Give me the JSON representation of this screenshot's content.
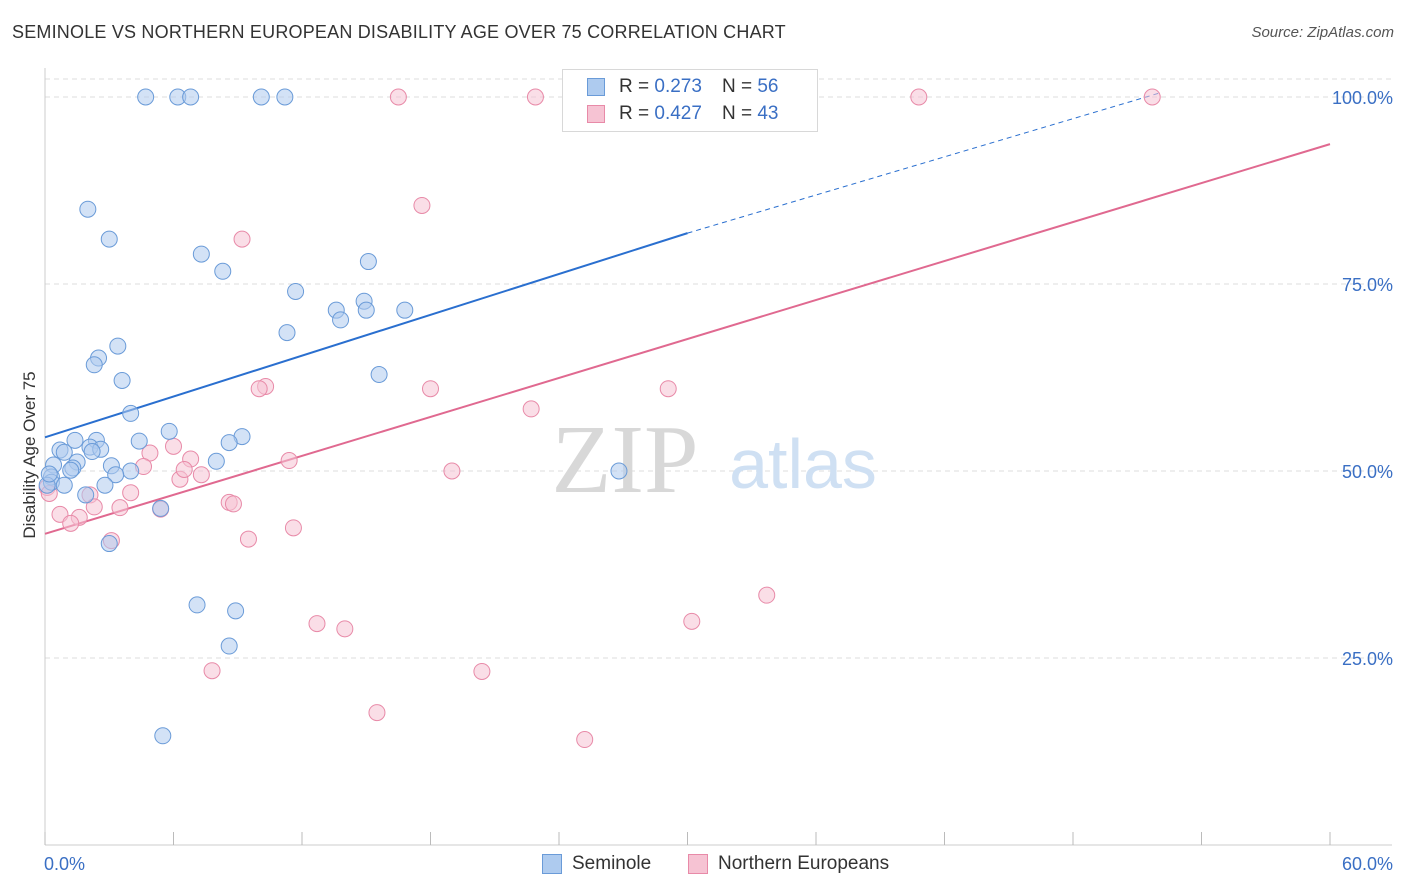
{
  "title": "SEMINOLE VS NORTHERN EUROPEAN DISABILITY AGE OVER 75 CORRELATION CHART",
  "source": "Source: ZipAtlas.com",
  "watermark": {
    "zip": "ZIP",
    "atlas": "atlas"
  },
  "legend_top": [
    {
      "r_label": "R = ",
      "r_value": "0.273",
      "n_label": "N = ",
      "n_value": "56"
    },
    {
      "r_label": "R = ",
      "r_value": "0.427",
      "n_label": "N = ",
      "n_value": "43"
    }
  ],
  "colors": {
    "blue_fill": "#aecbef",
    "blue_stroke": "#6a9bd8",
    "blue_line": "#2a6fcf",
    "pink_fill": "#f6c3d3",
    "pink_stroke": "#e88aa8",
    "pink_line": "#e06990",
    "axis_text": "#3a6fc4",
    "grid": "#dddddd"
  },
  "chart_data": {
    "type": "scatter",
    "title": "SEMINOLE VS NORTHERN EUROPEAN DISABILITY AGE OVER 75 CORRELATION CHART",
    "xlabel": "",
    "ylabel": "Disability Age Over 75",
    "xlim": [
      0,
      60
    ],
    "ylim": [
      0,
      104
    ],
    "x_tick_labels": [
      "0.0%",
      "60.0%"
    ],
    "y_ticks": [
      25,
      50,
      75,
      100
    ],
    "y_tick_labels": [
      "25.0%",
      "50.0%",
      "75.0%",
      "100.0%"
    ],
    "grid": true,
    "legend_placement": "bottom-center",
    "series": [
      {
        "name": "Seminole",
        "r": 0.273,
        "n": 56,
        "trend": {
          "x0": 0,
          "y0": 54.5,
          "x1": 30,
          "y1": 81.8,
          "dashed_to_x": 52,
          "dashed_to_y": 100.5
        },
        "points": [
          [
            4.7,
            100
          ],
          [
            6.2,
            100
          ],
          [
            6.8,
            100
          ],
          [
            10.1,
            100
          ],
          [
            11.2,
            100
          ],
          [
            2.0,
            85.0
          ],
          [
            3.0,
            81.0
          ],
          [
            7.3,
            79.0
          ],
          [
            8.3,
            76.7
          ],
          [
            15.1,
            78.0
          ],
          [
            11.7,
            74.0
          ],
          [
            14.9,
            72.7
          ],
          [
            13.6,
            71.5
          ],
          [
            16.8,
            71.5
          ],
          [
            15.0,
            71.5
          ],
          [
            13.8,
            70.2
          ],
          [
            11.3,
            68.5
          ],
          [
            3.4,
            66.7
          ],
          [
            2.5,
            65.1
          ],
          [
            2.3,
            64.2
          ],
          [
            15.6,
            62.9
          ],
          [
            3.6,
            62.1
          ],
          [
            4.0,
            57.7
          ],
          [
            5.8,
            55.3
          ],
          [
            9.2,
            54.6
          ],
          [
            8.6,
            53.8
          ],
          [
            1.4,
            54.1
          ],
          [
            2.4,
            54.1
          ],
          [
            4.4,
            54.0
          ],
          [
            2.1,
            53.2
          ],
          [
            0.7,
            52.8
          ],
          [
            2.6,
            52.9
          ],
          [
            0.9,
            52.5
          ],
          [
            8.0,
            51.3
          ],
          [
            1.5,
            51.2
          ],
          [
            3.1,
            50.7
          ],
          [
            0.4,
            50.8
          ],
          [
            1.3,
            50.4
          ],
          [
            1.2,
            50.1
          ],
          [
            4.0,
            50.0
          ],
          [
            3.3,
            49.5
          ],
          [
            0.3,
            49.2
          ],
          [
            0.3,
            48.5
          ],
          [
            0.9,
            48.1
          ],
          [
            2.8,
            48.1
          ],
          [
            0.1,
            48.1
          ],
          [
            1.9,
            46.8
          ],
          [
            26.8,
            50.0
          ],
          [
            5.4,
            45.0
          ],
          [
            3.0,
            40.3
          ],
          [
            7.1,
            32.1
          ],
          [
            8.9,
            31.3
          ],
          [
            8.6,
            26.6
          ],
          [
            5.5,
            14.6
          ],
          [
            0.2,
            49.6
          ],
          [
            2.2,
            52.6
          ]
        ]
      },
      {
        "name": "Northern Europeans",
        "r": 0.427,
        "n": 43,
        "trend": {
          "x0": 0,
          "y0": 41.6,
          "x1": 60,
          "y1": 93.7
        },
        "points": [
          [
            16.5,
            100
          ],
          [
            22.9,
            100
          ],
          [
            40.8,
            100
          ],
          [
            51.7,
            100
          ],
          [
            17.6,
            85.5
          ],
          [
            9.2,
            81.0
          ],
          [
            10.3,
            61.3
          ],
          [
            10.0,
            61.0
          ],
          [
            18.0,
            61.0
          ],
          [
            29.1,
            61.0
          ],
          [
            22.7,
            58.3
          ],
          [
            6.0,
            53.3
          ],
          [
            4.9,
            52.4
          ],
          [
            6.8,
            51.6
          ],
          [
            11.4,
            51.4
          ],
          [
            4.6,
            50.6
          ],
          [
            19.0,
            50.0
          ],
          [
            7.3,
            49.5
          ],
          [
            6.3,
            48.9
          ],
          [
            0.1,
            47.8
          ],
          [
            4.0,
            47.1
          ],
          [
            2.1,
            46.8
          ],
          [
            8.6,
            45.8
          ],
          [
            8.8,
            45.6
          ],
          [
            2.3,
            45.2
          ],
          [
            3.5,
            45.1
          ],
          [
            5.4,
            44.9
          ],
          [
            0.7,
            44.2
          ],
          [
            1.6,
            43.8
          ],
          [
            1.2,
            43.0
          ],
          [
            11.6,
            42.4
          ],
          [
            3.1,
            40.7
          ],
          [
            9.5,
            40.9
          ],
          [
            33.7,
            33.4
          ],
          [
            12.7,
            29.6
          ],
          [
            14.0,
            28.9
          ],
          [
            30.2,
            29.9
          ],
          [
            7.8,
            23.3
          ],
          [
            20.4,
            23.2
          ],
          [
            15.5,
            17.7
          ],
          [
            25.2,
            14.1
          ],
          [
            0.2,
            47.0
          ],
          [
            6.5,
            50.2
          ]
        ]
      }
    ]
  },
  "bottom_legend": [
    {
      "label": "Seminole"
    },
    {
      "label": "Northern Europeans"
    }
  ]
}
